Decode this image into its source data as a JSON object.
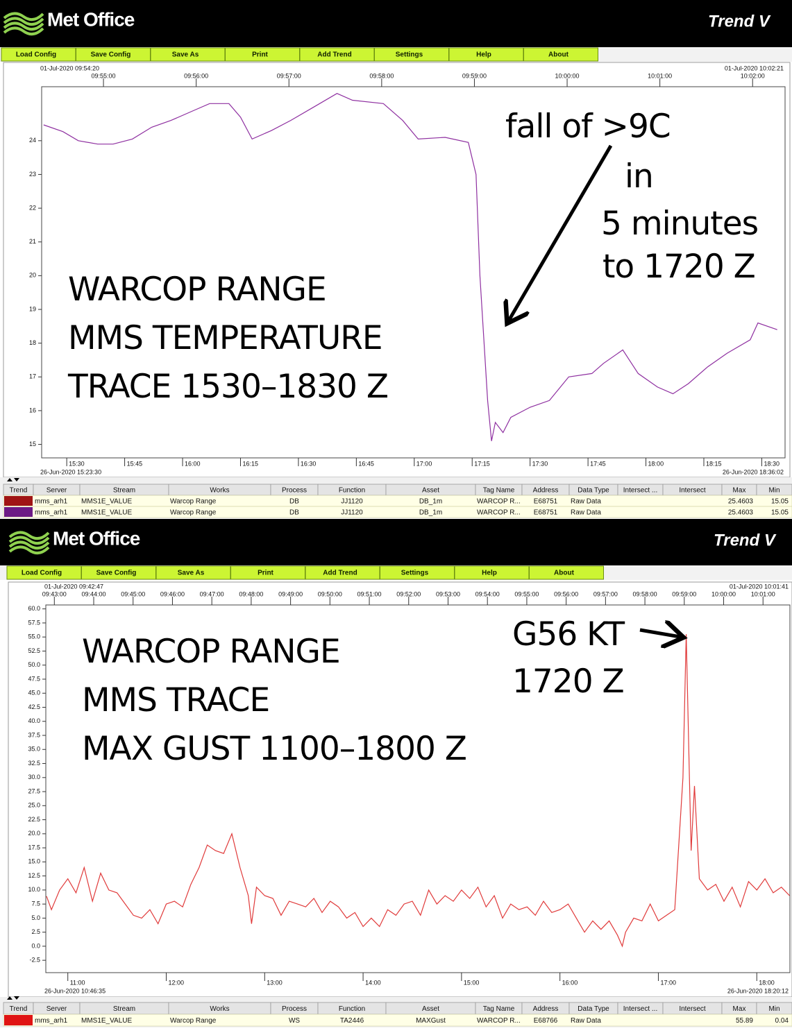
{
  "chart_data": [
    {
      "type": "line",
      "title": [
        "WARCOP RANGE",
        "MMS TEMPERATURE",
        "TRACE 1530–1830 Z"
      ],
      "annotations": [
        "fall of  >9C",
        "in",
        "5 minutes",
        "to 1720 Z"
      ],
      "xlim": [
        "26-Jun-2020 15:23:30",
        "26-Jun-2020 18:36:02"
      ],
      "xticks": [
        "15:30",
        "15:45",
        "16:00",
        "16:15",
        "16:30",
        "16:45",
        "17:00",
        "17:15",
        "17:30",
        "17:45",
        "18:00",
        "18:15",
        "18:30"
      ],
      "x2lim": [
        "01-Jul-2020 09:54:20",
        "01-Jul-2020 10:02:21"
      ],
      "x2ticks": [
        "09:55:00",
        "09:56:00",
        "09:57:00",
        "09:58:00",
        "09:59:00",
        "10:00:00",
        "10:01:00",
        "10:02:00"
      ],
      "ylim": [
        14.6,
        25.6
      ],
      "yticks": [
        15,
        16,
        17,
        18,
        19,
        20,
        21,
        22,
        23,
        24
      ],
      "grid": false,
      "x": [
        "15:24",
        "15:29",
        "15:33",
        "15:38",
        "15:42",
        "15:47",
        "15:52",
        "15:57",
        "16:03",
        "16:07",
        "16:12",
        "16:15",
        "16:18",
        "16:23",
        "16:28",
        "16:34",
        "16:40",
        "16:44",
        "16:52",
        "16:57",
        "17:01",
        "17:08",
        "17:14",
        "17:16",
        "17:17",
        "17:19",
        "17:20",
        "17:21",
        "17:23",
        "17:25",
        "17:30",
        "17:35",
        "17:40",
        "17:46",
        "17:49",
        "17:54",
        "17:58",
        "18:03",
        "18:07",
        "18:11",
        "18:16",
        "18:21",
        "18:27",
        "18:29",
        "18:34"
      ],
      "series": [
        {
          "color": "#8e2fa0",
          "values": [
            24.47,
            24.27,
            24.0,
            23.9,
            23.9,
            24.05,
            24.4,
            24.6,
            24.9,
            25.1,
            25.1,
            24.7,
            24.05,
            24.3,
            24.6,
            25.0,
            25.4,
            25.2,
            25.1,
            24.6,
            24.05,
            24.1,
            23.95,
            23.0,
            20.0,
            16.3,
            15.1,
            15.65,
            15.35,
            15.8,
            16.1,
            16.3,
            17.0,
            17.1,
            17.4,
            17.8,
            17.1,
            16.7,
            16.5,
            16.8,
            17.3,
            17.7,
            18.1,
            18.6,
            18.4
          ]
        }
      ]
    },
    {
      "type": "line",
      "title": [
        "WARCOP RANGE",
        "MMS TRACE",
        "MAX GUST 1100–1800 Z"
      ],
      "annotations": [
        "G56 KT",
        "1720 Z"
      ],
      "xlim": [
        "26-Jun-2020 10:46:35",
        "26-Jun-2020 18:20:12"
      ],
      "xticks": [
        "11:00",
        "12:00",
        "13:00",
        "14:00",
        "15:00",
        "16:00",
        "17:00",
        "18:00"
      ],
      "x2lim": [
        "01-Jul-2020 09:42:47",
        "01-Jul-2020 10:01:41"
      ],
      "x2ticks": [
        "09:43:00",
        "09:44:00",
        "09:45:00",
        "09:46:00",
        "09:47:00",
        "09:48:00",
        "09:49:00",
        "09:50:00",
        "09:51:00",
        "09:52:00",
        "09:53:00",
        "09:54:00",
        "09:55:00",
        "09:56:00",
        "09:57:00",
        "09:58:00",
        "09:59:00",
        "10:00:00",
        "10:01:00"
      ],
      "ylim": [
        -4.7,
        60.7
      ],
      "yticks": [
        {
          "value": -2.5,
          "label": "-2.5"
        },
        {
          "value": 0,
          "label": "0.0"
        },
        {
          "value": 2.5,
          "label": "2.5"
        },
        {
          "value": 5,
          "label": "5.0"
        },
        {
          "value": 7.5,
          "label": "7.5"
        },
        {
          "value": 10,
          "label": "10.0"
        },
        {
          "value": 12.5,
          "label": "12.5"
        },
        {
          "value": 15,
          "label": "15.0"
        },
        {
          "value": 17.5,
          "label": "17.5"
        },
        {
          "value": 20,
          "label": "20.0"
        },
        {
          "value": 22.5,
          "label": "22.5"
        },
        {
          "value": 25,
          "label": "25.0"
        },
        {
          "value": 27.5,
          "label": "27.5"
        },
        {
          "value": 30,
          "label": "30.0"
        },
        {
          "value": 32.5,
          "label": "32.5"
        },
        {
          "value": 35,
          "label": "35.0"
        },
        {
          "value": 37.5,
          "label": "37.5"
        },
        {
          "value": 40,
          "label": "40.0"
        },
        {
          "value": 42.5,
          "label": "42.5"
        },
        {
          "value": 45,
          "label": "45.0"
        },
        {
          "value": 47.5,
          "label": "47.5"
        },
        {
          "value": 50,
          "label": "50.0"
        },
        {
          "value": 52.5,
          "label": "52.5"
        },
        {
          "value": 55,
          "label": "55.0"
        },
        {
          "value": 57.5,
          "label": "57.5"
        },
        {
          "value": 60,
          "label": "60.0"
        }
      ],
      "grid": false,
      "x": [
        "10:47",
        "10:50",
        "10:55",
        "11:00",
        "11:05",
        "11:10",
        "11:15",
        "11:20",
        "11:25",
        "11:30",
        "11:35",
        "11:40",
        "11:45",
        "11:50",
        "11:55",
        "12:00",
        "12:05",
        "12:10",
        "12:15",
        "12:20",
        "12:25",
        "12:30",
        "12:35",
        "12:40",
        "12:45",
        "12:50",
        "12:52",
        "12:55",
        "13:00",
        "13:05",
        "13:10",
        "13:15",
        "13:20",
        "13:25",
        "13:30",
        "13:35",
        "13:40",
        "13:45",
        "13:50",
        "13:55",
        "14:00",
        "14:05",
        "14:10",
        "14:15",
        "14:20",
        "14:25",
        "14:30",
        "14:35",
        "14:40",
        "14:45",
        "14:50",
        "14:55",
        "15:00",
        "15:05",
        "15:10",
        "15:15",
        "15:20",
        "15:25",
        "15:30",
        "15:35",
        "15:40",
        "15:45",
        "15:50",
        "15:55",
        "16:00",
        "16:05",
        "16:10",
        "16:15",
        "16:20",
        "16:25",
        "16:30",
        "16:35",
        "16:38",
        "16:40",
        "16:45",
        "16:50",
        "16:55",
        "17:00",
        "17:05",
        "17:10",
        "17:15",
        "17:17",
        "17:19",
        "17:20",
        "17:22",
        "17:25",
        "17:30",
        "17:35",
        "17:40",
        "17:45",
        "17:50",
        "17:55",
        "18:00",
        "18:05",
        "18:10",
        "18:15",
        "18:20"
      ],
      "series": [
        {
          "color": "#e03a3a",
          "values": [
            8.9,
            6.5,
            10.0,
            12.0,
            9.5,
            14.0,
            8.0,
            13.0,
            10.0,
            9.5,
            7.5,
            5.5,
            5.0,
            6.5,
            4.0,
            7.5,
            8.0,
            7.0,
            11.0,
            14.0,
            18.0,
            17.0,
            16.5,
            20.0,
            14.0,
            9.0,
            4.0,
            10.5,
            9.0,
            8.5,
            5.5,
            8.0,
            7.5,
            7.0,
            8.5,
            6.0,
            8.0,
            7.0,
            5.0,
            6.0,
            3.5,
            5.0,
            3.5,
            6.5,
            5.5,
            7.5,
            8.0,
            5.5,
            10.0,
            7.5,
            9.0,
            8.0,
            10.0,
            8.5,
            10.5,
            7.0,
            9.0,
            5.0,
            7.5,
            6.5,
            7.0,
            5.5,
            8.0,
            6.0,
            6.5,
            7.5,
            5.0,
            2.5,
            4.5,
            3.0,
            4.5,
            2.0,
            0.0,
            2.5,
            5.0,
            4.5,
            7.5,
            4.5,
            5.5,
            6.5,
            30.0,
            55.5,
            29.0,
            17.0,
            28.5,
            12.0,
            10.0,
            11.0,
            8.0,
            10.5,
            7.0,
            11.5,
            10.0,
            12.0,
            9.5,
            10.5,
            9.0
          ]
        }
      ]
    }
  ],
  "panels": [
    {
      "header": {
        "logo": "Met Office",
        "title": "Trend V"
      },
      "menu": [
        "Load Config",
        "Save Config",
        "Save As",
        "Print",
        "Add Trend",
        "Settings",
        "Help",
        "About"
      ],
      "table": {
        "columns": [
          "Trend",
          "Server",
          "Stream",
          "Works",
          "Process",
          "Function",
          "Asset",
          "Tag Name",
          "Address",
          "Data Type",
          "Intersect ...",
          "Intersect",
          "Max",
          "Min"
        ],
        "rows": [
          {
            "color": "#a01414",
            "cells": [
              "mms_arh1",
              "MMS1E_VALUE",
              "Warcop Range",
              "DB",
              "JJ1120",
              "DB_1m",
              "WARCOP R...",
              "E68751",
              "Raw Data",
              null,
              null,
              25.4603,
              15.05
            ]
          },
          {
            "color": "#6c1a86",
            "cells": [
              "mms_arh1",
              "MMS1E_VALUE",
              "Warcop Range",
              "DB",
              "JJ1120",
              "DB_1m",
              "WARCOP R...",
              "E68751",
              "Raw Data",
              null,
              null,
              25.4603,
              15.05
            ]
          }
        ]
      }
    },
    {
      "header": {
        "logo": "Met Office",
        "title": "Trend V"
      },
      "menu": [
        "Load Config",
        "Save Config",
        "Save As",
        "Print",
        "Add Trend",
        "Settings",
        "Help",
        "About"
      ],
      "table": {
        "columns": [
          "Trend",
          "Server",
          "Stream",
          "Works",
          "Process",
          "Function",
          "Asset",
          "Tag Name",
          "Address",
          "Data Type",
          "Intersect ...",
          "Intersect",
          "Max",
          "Min"
        ],
        "rows": [
          {
            "color": "#e01414",
            "cells": [
              "mms_arh1",
              "MMS1E_VALUE",
              "Warcop Range",
              "WS",
              "TA2446",
              "MAXGust",
              "WARCOP R...",
              "E68766",
              "Raw Data",
              null,
              null,
              55.89,
              0.04
            ]
          }
        ]
      }
    }
  ]
}
